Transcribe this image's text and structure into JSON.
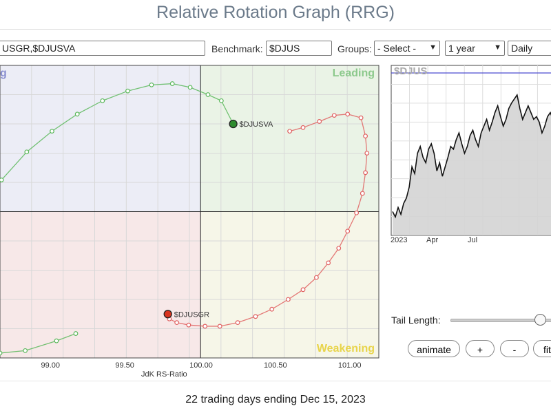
{
  "page": {
    "title": "Relative Rotation Graph (RRG)",
    "footer": "22 trading days ending Dec 15, 2023"
  },
  "toolbar": {
    "symbols_value": "USGR,$DJUSVA",
    "benchmark_label": "Benchmark:",
    "benchmark_value": "$DJUS",
    "groups_label": "Groups:",
    "groups_value": "- Select -",
    "period_value": "1 year",
    "frequency_value": "Daily"
  },
  "controls": {
    "tail_length_label": "Tail Length:",
    "tail_length_fraction": 0.82,
    "animate_label": "animate",
    "plus_label": "+",
    "minus_label": "-",
    "fit_label": "fit"
  },
  "colors": {
    "leading_bg": "#eaf3e6",
    "improving_bg": "#ecedf6",
    "lagging_bg": "#f7e8e8",
    "weakening_bg": "#f6f6e8",
    "green": "#6cbf6c",
    "red": "#e06b6b"
  },
  "chart_data": [
    {
      "type": "scatter",
      "title": "",
      "xlabel": "JdK RS-Ratio",
      "ylabel": "",
      "xlim": [
        98.65,
        101.2
      ],
      "ylim": [
        98.8,
        101.2
      ],
      "center": [
        100,
        100
      ],
      "x_ticks": [
        "99.00",
        "99.50",
        "100.00",
        "100.50",
        "101.00"
      ],
      "x_tick_values": [
        99.0,
        99.5,
        100.0,
        100.5,
        101.0
      ],
      "quadrants": {
        "top_left": "Improving",
        "top_left_visible": "g",
        "top_right": "Leading",
        "bottom_right": "Weakening"
      },
      "grid": true,
      "series": [
        {
          "name": "$DJUSVA",
          "color": "#5cb85c",
          "points": [
            [
              98.66,
              100.26
            ],
            [
              98.83,
              100.49
            ],
            [
              99.0,
              100.66
            ],
            [
              99.17,
              100.8
            ],
            [
              99.34,
              100.91
            ],
            [
              99.51,
              100.99
            ],
            [
              99.67,
              101.04
            ],
            [
              99.81,
              101.05
            ],
            [
              99.93,
              101.02
            ],
            [
              100.05,
              100.96
            ],
            [
              100.14,
              100.91
            ],
            [
              100.22,
              100.72
            ]
          ]
        },
        {
          "name": "$DJUSGR",
          "color": "#e06060",
          "points": [
            [
              100.6,
              100.66
            ],
            [
              100.69,
              100.69
            ],
            [
              100.8,
              100.74
            ],
            [
              100.9,
              100.79
            ],
            [
              100.99,
              100.8
            ],
            [
              101.08,
              100.77
            ],
            [
              101.11,
              100.62
            ],
            [
              101.12,
              100.48
            ],
            [
              101.11,
              100.32
            ],
            [
              101.09,
              100.15
            ],
            [
              101.05,
              99.99
            ],
            [
              100.99,
              99.84
            ],
            [
              100.93,
              99.7
            ],
            [
              100.86,
              99.58
            ],
            [
              100.78,
              99.46
            ],
            [
              100.69,
              99.36
            ],
            [
              100.59,
              99.28
            ],
            [
              100.48,
              99.2
            ],
            [
              100.37,
              99.14
            ],
            [
              100.25,
              99.09
            ],
            [
              100.13,
              99.06
            ],
            [
              100.03,
              99.06
            ],
            [
              99.92,
              99.07
            ],
            [
              99.84,
              99.09
            ],
            [
              99.79,
              99.12
            ],
            [
              99.78,
              99.16
            ]
          ]
        },
        {
          "name": "",
          "color": "#5cb85c",
          "points": [
            [
              98.65,
              98.84
            ],
            [
              98.82,
              98.86
            ],
            [
              99.03,
              98.94
            ],
            [
              99.16,
              99.0
            ]
          ]
        }
      ]
    },
    {
      "type": "line",
      "title": "$DJUS",
      "x_ticks": [
        "2023",
        "Apr",
        "Jul"
      ],
      "x_tick_positions": [
        0,
        0.25,
        0.5
      ],
      "ylim": [
        0,
        100
      ],
      "reference_level": 95,
      "values": [
        12,
        8,
        15,
        10,
        18,
        22,
        30,
        45,
        40,
        55,
        60,
        52,
        48,
        58,
        62,
        55,
        42,
        48,
        38,
        45,
        52,
        60,
        58,
        65,
        70,
        62,
        55,
        60,
        68,
        72,
        65,
        60,
        70,
        75,
        80,
        72,
        78,
        85,
        90,
        82,
        75,
        80,
        88,
        92,
        95,
        98,
        88,
        80,
        85,
        90,
        85,
        80,
        82,
        78,
        70,
        75,
        82,
        85,
        80,
        78
      ]
    }
  ]
}
